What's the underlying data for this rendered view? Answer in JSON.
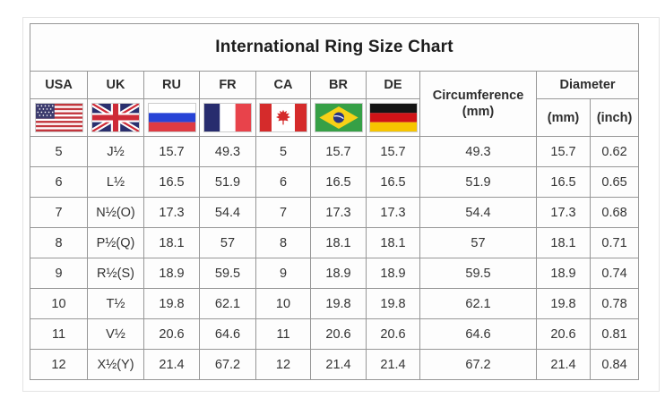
{
  "title": "International Ring Size Chart",
  "table": {
    "columns": [
      "USA",
      "UK",
      "RU",
      "FR",
      "CA",
      "BR",
      "DE"
    ],
    "flags": [
      "usa-flag",
      "uk-flag",
      "russia-flag",
      "france-flag",
      "canada-flag",
      "brazil-flag",
      "germany-flag"
    ],
    "circumference_label": "Circumference",
    "circumference_unit": "(mm)",
    "diameter_label": "Diameter",
    "diameter_units": [
      "(mm)",
      "(inch)"
    ],
    "rows": [
      [
        "5",
        "J½",
        "15.7",
        "49.3",
        "5",
        "15.7",
        "15.7",
        "49.3",
        "15.7",
        "0.62"
      ],
      [
        "6",
        "L½",
        "16.5",
        "51.9",
        "6",
        "16.5",
        "16.5",
        "51.9",
        "16.5",
        "0.65"
      ],
      [
        "7",
        "N½(O)",
        "17.3",
        "54.4",
        "7",
        "17.3",
        "17.3",
        "54.4",
        "17.3",
        "0.68"
      ],
      [
        "8",
        "P½(Q)",
        "18.1",
        "57",
        "8",
        "18.1",
        "18.1",
        "57",
        "18.1",
        "0.71"
      ],
      [
        "9",
        "R½(S)",
        "18.9",
        "59.5",
        "9",
        "18.9",
        "18.9",
        "59.5",
        "18.9",
        "0.74"
      ],
      [
        "10",
        "T½",
        "19.8",
        "62.1",
        "10",
        "19.8",
        "19.8",
        "62.1",
        "19.8",
        "0.78"
      ],
      [
        "11",
        "V½",
        "20.6",
        "64.6",
        "11",
        "20.6",
        "20.6",
        "64.6",
        "20.6",
        "0.81"
      ],
      [
        "12",
        "X½(Y)",
        "21.4",
        "67.2",
        "12",
        "21.4",
        "21.4",
        "67.2",
        "21.4",
        "0.84"
      ]
    ]
  },
  "chart_data": {
    "type": "table",
    "title": "International Ring Size Chart",
    "columns": [
      "USA",
      "UK",
      "RU",
      "FR",
      "CA",
      "BR",
      "DE",
      "Circumference (mm)",
      "Diameter (mm)",
      "Diameter (inch)"
    ],
    "rows": [
      [
        "5",
        "J½",
        "15.7",
        "49.3",
        "5",
        "15.7",
        "15.7",
        "49.3",
        "15.7",
        "0.62"
      ],
      [
        "6",
        "L½",
        "16.5",
        "51.9",
        "6",
        "16.5",
        "16.5",
        "51.9",
        "16.5",
        "0.65"
      ],
      [
        "7",
        "N½(O)",
        "17.3",
        "54.4",
        "7",
        "17.3",
        "17.3",
        "54.4",
        "17.3",
        "0.68"
      ],
      [
        "8",
        "P½(Q)",
        "18.1",
        "57",
        "8",
        "18.1",
        "18.1",
        "57",
        "18.1",
        "0.71"
      ],
      [
        "9",
        "R½(S)",
        "18.9",
        "59.5",
        "9",
        "18.9",
        "18.9",
        "59.5",
        "18.9",
        "0.74"
      ],
      [
        "10",
        "T½",
        "19.8",
        "62.1",
        "10",
        "19.8",
        "19.8",
        "62.1",
        "19.8",
        "0.78"
      ],
      [
        "11",
        "V½",
        "20.6",
        "64.6",
        "11",
        "20.6",
        "20.6",
        "64.6",
        "20.6",
        "0.81"
      ],
      [
        "12",
        "X½(Y)",
        "21.4",
        "67.2",
        "12",
        "21.4",
        "21.4",
        "67.2",
        "21.4",
        "0.84"
      ]
    ]
  },
  "colors": {
    "grid_border": "#979797",
    "text": "#2e2e2e",
    "background": "#ffffff"
  }
}
